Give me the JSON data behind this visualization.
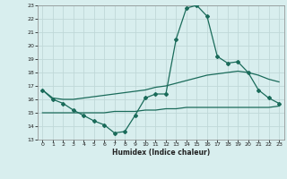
{
  "x": [
    0,
    1,
    2,
    3,
    4,
    5,
    6,
    7,
    8,
    9,
    10,
    11,
    12,
    13,
    14,
    15,
    16,
    17,
    18,
    19,
    20,
    21,
    22,
    23
  ],
  "y_main": [
    16.7,
    16.0,
    15.7,
    15.2,
    14.8,
    14.4,
    14.1,
    13.5,
    13.6,
    14.8,
    16.1,
    16.4,
    16.4,
    20.5,
    22.8,
    23.0,
    22.2,
    19.2,
    18.7,
    18.8,
    18.0,
    16.7,
    16.1,
    15.7
  ],
  "y_upper": [
    16.7,
    16.1,
    16.0,
    16.0,
    16.1,
    16.2,
    16.3,
    16.4,
    16.5,
    16.6,
    16.7,
    16.9,
    17.0,
    17.2,
    17.4,
    17.6,
    17.8,
    17.9,
    18.0,
    18.1,
    18.0,
    17.8,
    17.5,
    17.3
  ],
  "y_lower": [
    15.0,
    15.0,
    15.0,
    15.0,
    15.0,
    15.0,
    15.0,
    15.1,
    15.1,
    15.1,
    15.2,
    15.2,
    15.3,
    15.3,
    15.4,
    15.4,
    15.4,
    15.4,
    15.4,
    15.4,
    15.4,
    15.4,
    15.4,
    15.5
  ],
  "line_color": "#1a6b5a",
  "bg_color": "#d8eeee",
  "grid_color": "#c0d8d8",
  "xlabel": "Humidex (Indice chaleur)",
  "ylim": [
    13,
    23
  ],
  "xlim": [
    -0.5,
    23.5
  ],
  "yticks": [
    13,
    14,
    15,
    16,
    17,
    18,
    19,
    20,
    21,
    22,
    23
  ],
  "xticks": [
    0,
    1,
    2,
    3,
    4,
    5,
    6,
    7,
    8,
    9,
    10,
    11,
    12,
    13,
    14,
    15,
    16,
    17,
    18,
    19,
    20,
    21,
    22,
    23
  ]
}
